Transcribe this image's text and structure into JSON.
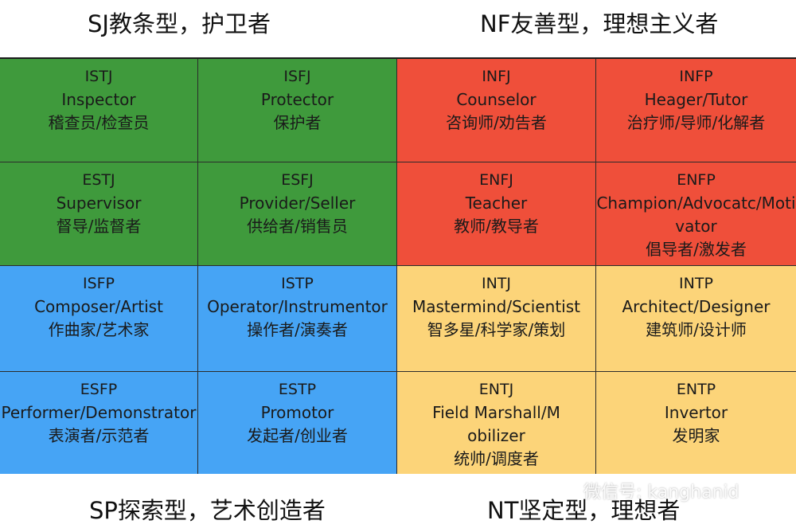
{
  "headers": {
    "sj": "SJ教条型，护卫者",
    "nf": "NF友善型，理想主义者",
    "sp": "SP探索型，艺术创造者",
    "nt": "NT坚定型，理想者"
  },
  "cells": [
    {
      "code": "ISTJ",
      "en": "Inspector",
      "zh": "稽查员/检查员",
      "color": "#3f9a3c"
    },
    {
      "code": "ISFJ",
      "en": "Protector",
      "zh": "保护者",
      "color": "#3f9a3c"
    },
    {
      "code": "INFJ",
      "en": "Counselor",
      "zh": "咨询师/劝告者",
      "color": "#ef4f3a"
    },
    {
      "code": "INFP",
      "en": "Heager/Tutor",
      "zh": "治疗师/导师/化解者",
      "color": "#ef4f3a"
    },
    {
      "code": "ESTJ",
      "en": "Supervisor",
      "zh": "督导/监督者",
      "color": "#3f9a3c"
    },
    {
      "code": "ESFJ",
      "en": "Provider/Seller",
      "zh": "供给者/销售员",
      "color": "#3f9a3c"
    },
    {
      "code": "ENFJ",
      "en": "Teacher",
      "zh": "教师/教导者",
      "color": "#ef4f3a"
    },
    {
      "code": "ENFP",
      "en": "Champion/Advocatc/Motivator",
      "zh": "倡导者/激发者",
      "color": "#ef4f3a"
    },
    {
      "code": "ISFP",
      "en": "Composer/Artist",
      "zh": "作曲家/艺术家",
      "color": "#46a4f5"
    },
    {
      "code": "ISTP",
      "en": "Operator/Instrumentor",
      "zh": "操作者/演奏者",
      "color": "#46a4f5"
    },
    {
      "code": "INTJ",
      "en": "Mastermind/Scientist",
      "zh": "智多星/科学家/策划",
      "color": "#fcd479"
    },
    {
      "code": "INTP",
      "en": "Architect/Designer",
      "zh": "建筑师/设计师",
      "color": "#fcd479"
    },
    {
      "code": "ESFP",
      "en": "Performer/Demonstrator",
      "zh": "表演者/示范者",
      "color": "#46a4f5"
    },
    {
      "code": "ESTP",
      "en": "Promotor",
      "zh": "发起者/创业者",
      "color": "#46a4f5"
    },
    {
      "code": "ENTJ",
      "en": "Field Marshall/Mobilizer",
      "zh": "统帅/调度者",
      "color": "#fcd479"
    },
    {
      "code": "ENTP",
      "en": "Invertor",
      "zh": "发明家",
      "color": "#fcd479"
    }
  ],
  "watermark": {
    "icon": "wechat-icon",
    "text": "微信号: kanghanid"
  }
}
